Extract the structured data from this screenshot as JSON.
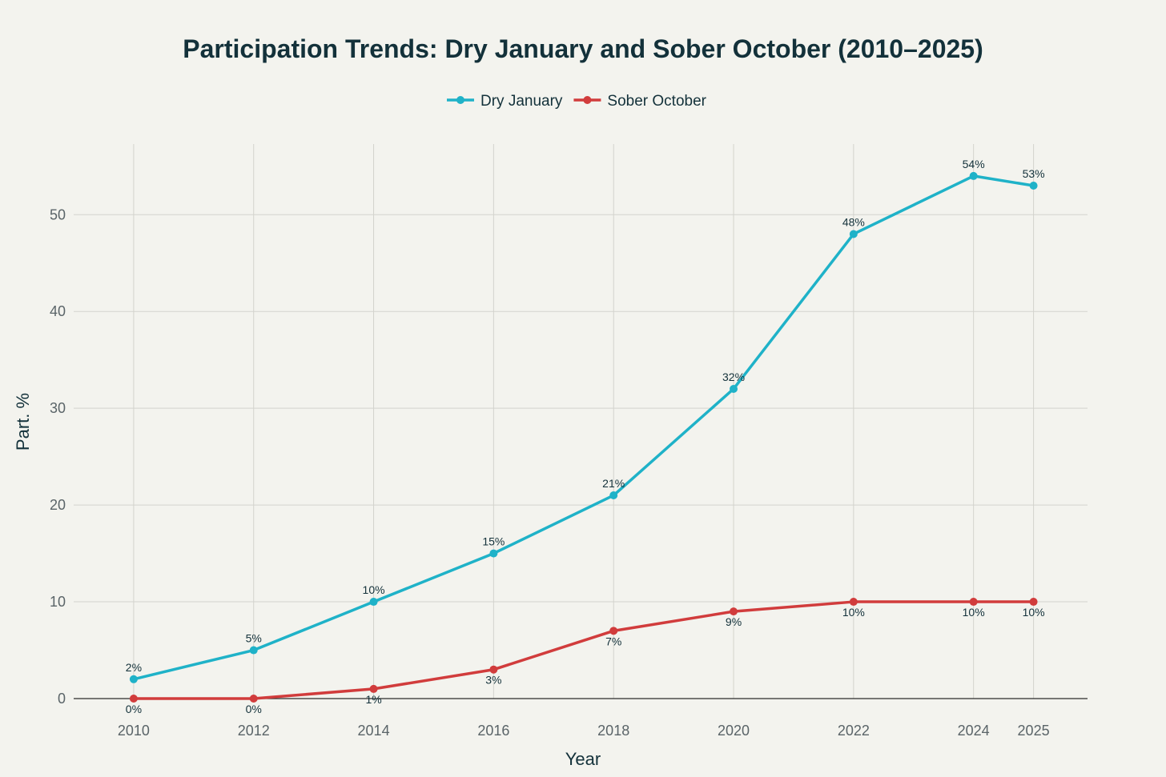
{
  "chart_data": {
    "type": "line",
    "title": "Participation Trends: Dry January and Sober October (2010–2025)",
    "xlabel": "Year",
    "ylabel": "Part. %",
    "x": [
      2010,
      2012,
      2014,
      2016,
      2018,
      2020,
      2022,
      2024,
      2025
    ],
    "xticks": [
      "2010",
      "2012",
      "2014",
      "2016",
      "2018",
      "2020",
      "2022",
      "2024",
      "2025"
    ],
    "yticks": [
      "0",
      "10",
      "20",
      "30",
      "40",
      "50"
    ],
    "xlim": [
      2009,
      2025.9
    ],
    "ylim": [
      0,
      57.3
    ],
    "grid": true,
    "legend_position": "top-center",
    "series": [
      {
        "name": "Dry January",
        "color": "#1fb2c8",
        "label_position": "above",
        "values": [
          2,
          5,
          10,
          15,
          21,
          32,
          48,
          54,
          53
        ],
        "labels": [
          "2%",
          "5%",
          "10%",
          "15%",
          "21%",
          "32%",
          "48%",
          "54%",
          "53%"
        ]
      },
      {
        "name": "Sober October",
        "color": "#d13c3c",
        "label_position": "below",
        "values": [
          0,
          0,
          1,
          3,
          7,
          9,
          10,
          10,
          10
        ],
        "labels": [
          "0%",
          "0%",
          "1%",
          "3%",
          "7%",
          "9%",
          "10%",
          "10%",
          "10%"
        ]
      }
    ]
  }
}
